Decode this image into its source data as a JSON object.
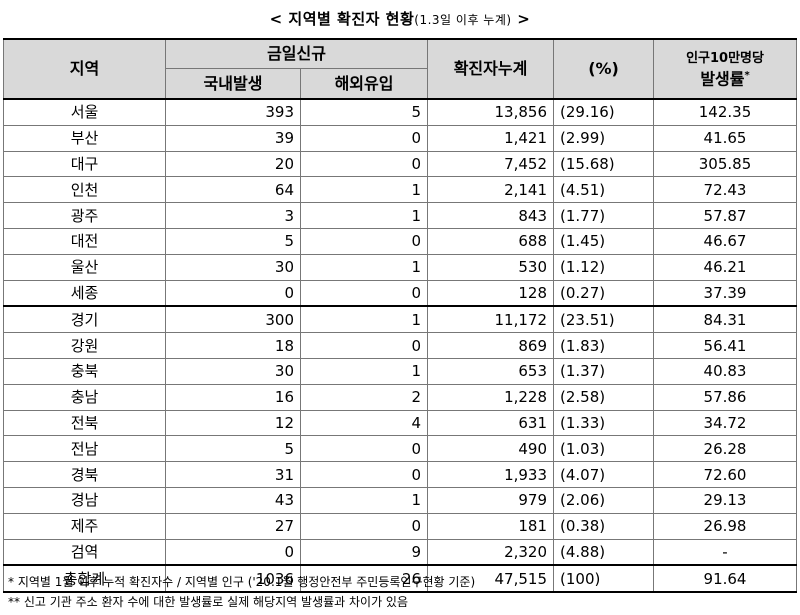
{
  "title": {
    "main": "< 지역별 확진자 현황",
    "sub": "(1.3일 이후 누계)",
    "end": " >"
  },
  "headers": {
    "region": "지역",
    "new_today": "금일신규",
    "domestic": "국내발생",
    "overseas": "해외유입",
    "cumulative": "확진자누계",
    "percent": "(%)",
    "rate_line1": "인구10만명당",
    "rate_line2": "발생률",
    "rate_mark": "*"
  },
  "rows": [
    {
      "region": "서울",
      "domestic": "393",
      "overseas": "5",
      "cumulative": "13,856",
      "percent": "(29.16)",
      "rate": "142.35"
    },
    {
      "region": "부산",
      "domestic": "39",
      "overseas": "0",
      "cumulative": "1,421",
      "percent": "(2.99)",
      "rate": "41.65"
    },
    {
      "region": "대구",
      "domestic": "20",
      "overseas": "0",
      "cumulative": "7,452",
      "percent": "(15.68)",
      "rate": "305.85"
    },
    {
      "region": "인천",
      "domestic": "64",
      "overseas": "1",
      "cumulative": "2,141",
      "percent": "(4.51)",
      "rate": "72.43"
    },
    {
      "region": "광주",
      "domestic": "3",
      "overseas": "1",
      "cumulative": "843",
      "percent": "(1.77)",
      "rate": "57.87"
    },
    {
      "region": "대전",
      "domestic": "5",
      "overseas": "0",
      "cumulative": "688",
      "percent": "(1.45)",
      "rate": "46.67"
    },
    {
      "region": "울산",
      "domestic": "30",
      "overseas": "1",
      "cumulative": "530",
      "percent": "(1.12)",
      "rate": "46.21"
    },
    {
      "region": "세종",
      "domestic": "0",
      "overseas": "0",
      "cumulative": "128",
      "percent": "(0.27)",
      "rate": "37.39"
    },
    {
      "region": "경기",
      "domestic": "300",
      "overseas": "1",
      "cumulative": "11,172",
      "percent": "(23.51)",
      "rate": "84.31"
    },
    {
      "region": "강원",
      "domestic": "18",
      "overseas": "0",
      "cumulative": "869",
      "percent": "(1.83)",
      "rate": "56.41"
    },
    {
      "region": "충북",
      "domestic": "30",
      "overseas": "1",
      "cumulative": "653",
      "percent": "(1.37)",
      "rate": "40.83"
    },
    {
      "region": "충남",
      "domestic": "16",
      "overseas": "2",
      "cumulative": "1,228",
      "percent": "(2.58)",
      "rate": "57.86"
    },
    {
      "region": "전북",
      "domestic": "12",
      "overseas": "4",
      "cumulative": "631",
      "percent": "(1.33)",
      "rate": "34.72"
    },
    {
      "region": "전남",
      "domestic": "5",
      "overseas": "0",
      "cumulative": "490",
      "percent": "(1.03)",
      "rate": "26.28"
    },
    {
      "region": "경북",
      "domestic": "31",
      "overseas": "0",
      "cumulative": "1,933",
      "percent": "(4.07)",
      "rate": "72.60"
    },
    {
      "region": "경남",
      "domestic": "43",
      "overseas": "1",
      "cumulative": "979",
      "percent": "(2.06)",
      "rate": "29.13"
    },
    {
      "region": "제주",
      "domestic": "27",
      "overseas": "0",
      "cumulative": "181",
      "percent": "(0.38)",
      "rate": "26.98"
    },
    {
      "region": "검역",
      "domestic": "0",
      "overseas": "9",
      "cumulative": "2,320",
      "percent": "(4.88)",
      "rate": "-"
    }
  ],
  "total": {
    "region": "총합계",
    "domestic": "1036",
    "overseas": "26",
    "cumulative": "47,515",
    "percent": "(100)",
    "rate": "91.64"
  },
  "notes": [
    "* 지역별 1월 이후 누적 확진자수 / 지역별 인구 ('20.1월 행정안전부 주민등록인구현황 기준)",
    "** 신고 기관 주소 환자 수에 대한 발생률로 실제 해당지역 발생률과 차이가 있음"
  ]
}
